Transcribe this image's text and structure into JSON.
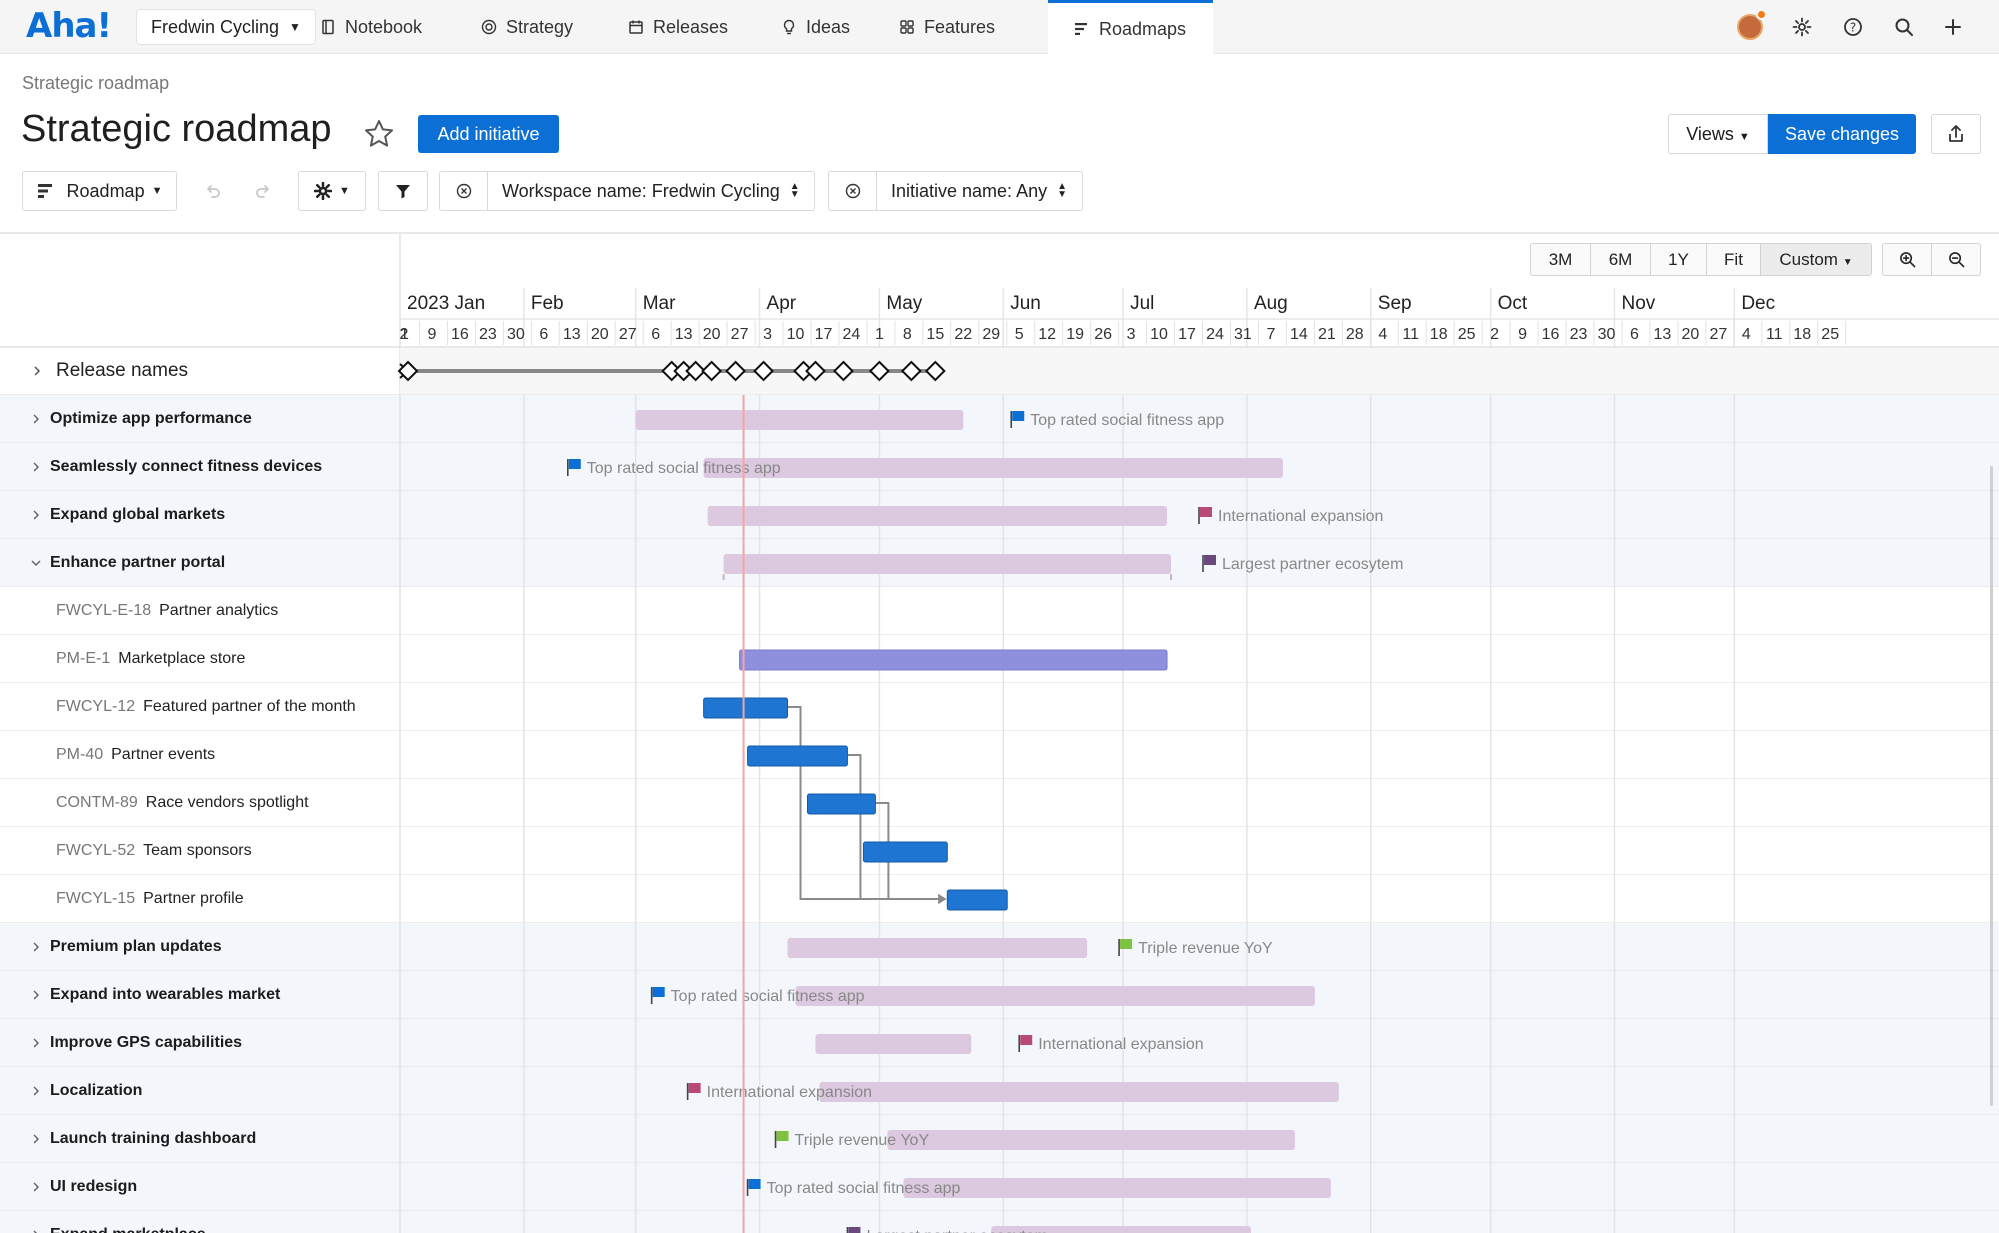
{
  "app": {
    "logo": "Aha!",
    "workspace": "Fredwin Cycling",
    "nav": [
      {
        "label": "Notebook",
        "icon": "notebook-icon"
      },
      {
        "label": "Strategy",
        "icon": "target-icon"
      },
      {
        "label": "Releases",
        "icon": "calendar-icon"
      },
      {
        "label": "Ideas",
        "icon": "lightbulb-icon"
      },
      {
        "label": "Features",
        "icon": "grid-icon"
      },
      {
        "label": "Roadmaps",
        "icon": "roadmap-icon",
        "active": true
      }
    ]
  },
  "header": {
    "breadcrumb": "Strategic roadmap",
    "title": "Strategic roadmap",
    "add_initiative": "Add initiative",
    "views": "Views",
    "save_changes": "Save changes"
  },
  "toolbar": {
    "roadmap": "Roadmap",
    "filters": [
      {
        "label": "Workspace name: Fredwin Cycling"
      },
      {
        "label": "Initiative name: Any"
      }
    ]
  },
  "timeline": {
    "zoom_options": [
      "3M",
      "6M",
      "1Y",
      "Fit",
      "Custom"
    ],
    "selected_zoom": "Custom",
    "months": [
      {
        "label": "2023 Jan",
        "date": "2023-01-01"
      },
      {
        "label": "Feb",
        "date": "2023-02-01"
      },
      {
        "label": "Mar",
        "date": "2023-03-01"
      },
      {
        "label": "Apr",
        "date": "2023-04-01"
      },
      {
        "label": "May",
        "date": "2023-05-01"
      },
      {
        "label": "Jun",
        "date": "2023-06-01"
      },
      {
        "label": "Jul",
        "date": "2023-07-01"
      },
      {
        "label": "Aug",
        "date": "2023-08-01"
      },
      {
        "label": "Sep",
        "date": "2023-09-01"
      },
      {
        "label": "Oct",
        "date": "2023-10-01"
      },
      {
        "label": "Nov",
        "date": "2023-11-01"
      },
      {
        "label": "Dec",
        "date": "2023-12-01"
      }
    ],
    "weeks": [
      "1",
      "2",
      "9",
      "16",
      "23",
      "30",
      "6",
      "13",
      "20",
      "27",
      "6",
      "13",
      "20",
      "27",
      "3",
      "10",
      "17",
      "24",
      "1",
      "8",
      "15",
      "22",
      "29",
      "5",
      "12",
      "19",
      "26",
      "3",
      "10",
      "17",
      "24",
      "31",
      "7",
      "14",
      "21",
      "28",
      "4",
      "11",
      "18",
      "25",
      "2",
      "9",
      "16",
      "23",
      "30",
      "6",
      "13",
      "20",
      "27",
      "4",
      "11",
      "18",
      "25"
    ],
    "today": "2023-03-28",
    "release_label": "Release names",
    "release_dates": [
      "2023-01-03",
      "2023-03-10",
      "2023-03-13",
      "2023-03-16",
      "2023-03-20",
      "2023-03-26",
      "2023-04-02",
      "2023-04-12",
      "2023-04-15",
      "2023-04-22",
      "2023-05-01",
      "2023-05-09",
      "2023-05-15"
    ]
  },
  "rows": [
    {
      "type": "parent",
      "name": "Optimize app performance",
      "expanded": false,
      "start": "2023-03-01",
      "end": "2023-05-22",
      "goal": {
        "label": "Top rated social fitness app",
        "date": "2023-06-03",
        "color": "#0b6fd6",
        "side": "right"
      }
    },
    {
      "type": "parent",
      "name": "Seamlessly connect fitness devices",
      "expanded": false,
      "start": "2023-03-18",
      "end": "2023-08-10",
      "goal": {
        "label": "Top rated social fitness app",
        "date": "2023-02-12",
        "color": "#0b6fd6",
        "side": "left"
      }
    },
    {
      "type": "parent",
      "name": "Expand global markets",
      "expanded": false,
      "start": "2023-03-19",
      "end": "2023-07-12",
      "goal": {
        "label": "International expansion",
        "date": "2023-07-20",
        "color": "#b94a78",
        "side": "right"
      }
    },
    {
      "type": "parent",
      "name": "Enhance partner portal",
      "expanded": true,
      "start": "2023-03-23",
      "end": "2023-07-13",
      "goal": {
        "label": "Largest partner ecosytem",
        "date": "2023-07-21",
        "color": "#6a4a7d",
        "side": "right"
      }
    },
    {
      "type": "child",
      "key": "FWCYL-E-18",
      "name": "Partner analytics"
    },
    {
      "type": "child",
      "key": "PM-E-1",
      "name": "Marketplace store",
      "start": "2023-03-27",
      "end": "2023-07-12",
      "color": "#8e8fdd"
    },
    {
      "type": "child",
      "key": "FWCYL-12",
      "name": "Featured partner of the month",
      "start": "2023-03-18",
      "end": "2023-04-08",
      "color": "#1f76d2"
    },
    {
      "type": "child",
      "key": "PM-40",
      "name": "Partner events",
      "start": "2023-03-29",
      "end": "2023-04-23",
      "color": "#1f76d2"
    },
    {
      "type": "child",
      "key": "CONTM-89",
      "name": "Race vendors spotlight",
      "start": "2023-04-13",
      "end": "2023-04-30",
      "color": "#1f76d2"
    },
    {
      "type": "child",
      "key": "FWCYL-52",
      "name": "Team sponsors",
      "start": "2023-04-27",
      "end": "2023-05-18",
      "color": "#1f76d2"
    },
    {
      "type": "child",
      "key": "FWCYL-15",
      "name": "Partner profile",
      "start": "2023-05-18",
      "end": "2023-06-02",
      "color": "#1f76d2"
    },
    {
      "type": "parent",
      "name": "Premium plan updates",
      "expanded": false,
      "start": "2023-04-08",
      "end": "2023-06-22",
      "goal": {
        "label": "Triple revenue YoY",
        "date": "2023-06-30",
        "color": "#7fc241",
        "side": "right"
      }
    },
    {
      "type": "parent",
      "name": "Expand into wearables market",
      "expanded": false,
      "start": "2023-04-10",
      "end": "2023-08-18",
      "goal": {
        "label": "Top rated social fitness app",
        "date": "2023-03-05",
        "color": "#0b6fd6",
        "side": "left"
      }
    },
    {
      "type": "parent",
      "name": "Improve GPS capabilities",
      "expanded": false,
      "start": "2023-04-15",
      "end": "2023-05-24",
      "goal": {
        "label": "International expansion",
        "date": "2023-06-05",
        "color": "#b94a78",
        "side": "right"
      }
    },
    {
      "type": "parent",
      "name": "Localization",
      "expanded": false,
      "start": "2023-04-16",
      "end": "2023-08-24",
      "goal": {
        "label": "International expansion",
        "date": "2023-03-14",
        "color": "#b94a78",
        "side": "left"
      }
    },
    {
      "type": "parent",
      "name": "Launch training dashboard",
      "expanded": false,
      "start": "2023-05-03",
      "end": "2023-08-13",
      "goal": {
        "label": "Triple revenue YoY",
        "date": "2023-04-05",
        "color": "#7fc241",
        "side": "left"
      }
    },
    {
      "type": "parent",
      "name": "UI redesign",
      "expanded": false,
      "start": "2023-05-07",
      "end": "2023-08-22",
      "goal": {
        "label": "Top rated social fitness app",
        "date": "2023-03-29",
        "color": "#0b6fd6",
        "side": "left"
      }
    },
    {
      "type": "parent",
      "name": "Expand marketplace",
      "expanded": false,
      "start": "2023-05-29",
      "end": "2023-08-02",
      "goal": {
        "label": "Largest partner ecosytem",
        "date": "2023-04-23",
        "color": "#6a4a7d",
        "side": "left"
      }
    }
  ],
  "dependencies": [
    {
      "from": "FWCYL-12",
      "to": "FWCYL-15"
    },
    {
      "from": "PM-40",
      "to": "FWCYL-15"
    },
    {
      "from": "CONTM-89",
      "to": "FWCYL-15"
    }
  ],
  "colors": {
    "accent": "#0b6fd6",
    "initiative_bar": "#dcc8df",
    "today_line": "#f2a5a5"
  }
}
